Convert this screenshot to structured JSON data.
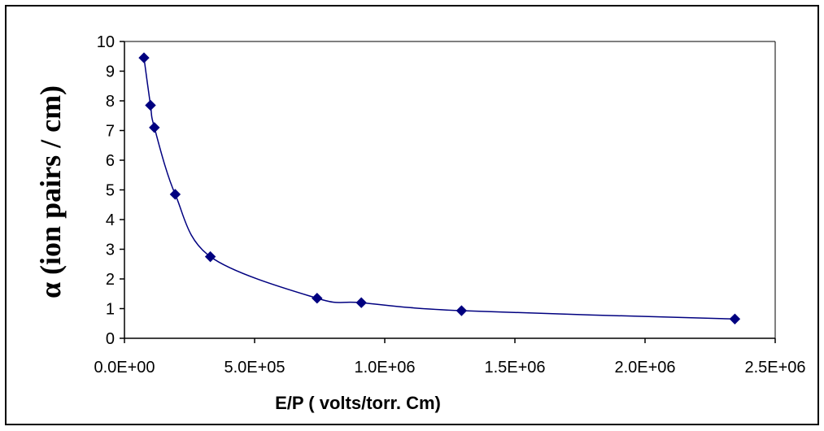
{
  "chart_data": {
    "type": "scatter",
    "title": "",
    "xlabel": "E/P ( volts/torr. Cm)",
    "ylabel": "α (ion pairs / cm)",
    "xlim": [
      0,
      2500000
    ],
    "ylim": [
      0,
      10
    ],
    "x_ticks": [
      0,
      500000,
      1000000,
      1500000,
      2000000,
      2500000
    ],
    "x_tick_labels": [
      "0.0E+00",
      "5.0E+05",
      "1.0E+06",
      "1.5E+06",
      "2.0E+06",
      "2.5E+06"
    ],
    "y_ticks": [
      0,
      1,
      2,
      3,
      4,
      5,
      6,
      7,
      8,
      9,
      10
    ],
    "y_tick_labels": [
      "0",
      "1",
      "2",
      "3",
      "4",
      "5",
      "6",
      "7",
      "8",
      "9",
      "10"
    ],
    "grid": false,
    "legend": "none",
    "marker": "diamond",
    "line": "smoothed",
    "color": "#000080",
    "series": [
      {
        "x": [
          75000,
          100000,
          115000,
          195000,
          330000,
          740000,
          910000,
          1295000,
          2345000
        ],
        "y": [
          9.45,
          7.85,
          7.1,
          4.85,
          2.75,
          1.35,
          1.2,
          0.93,
          0.65
        ]
      }
    ]
  }
}
